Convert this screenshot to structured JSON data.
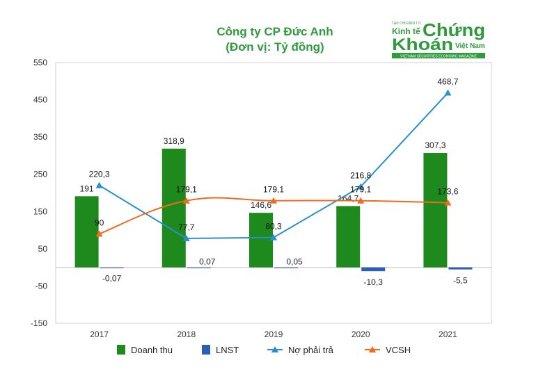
{
  "chart_data": {
    "type": "bar",
    "title": "Công ty CP Đức Anh",
    "subtitle": "(Đơn vị: Tỷ đồng)",
    "categories": [
      "2017",
      "2018",
      "2019",
      "2020",
      "2021"
    ],
    "series": [
      {
        "name": "Doanh thu",
        "type": "bar",
        "color": "#1e8a1e",
        "values": [
          191,
          318.9,
          146.6,
          164.7,
          307.3
        ],
        "labels": [
          "191",
          "318,9",
          "146,6",
          "164,7",
          "307,3"
        ]
      },
      {
        "name": "LNST",
        "type": "bar",
        "color": "#2a5fb3",
        "values": [
          -0.07,
          0.07,
          0.05,
          -10.3,
          -5.5
        ],
        "labels": [
          "-0,07",
          "0,07",
          "0,05",
          "-10,3",
          "-5,5"
        ]
      },
      {
        "name": "Nợ phải trả",
        "type": "line",
        "color": "#2b8fcc",
        "values": [
          220.3,
          77.7,
          80.3,
          216.8,
          468.7
        ],
        "labels": [
          "220,3",
          "77,7",
          "80,3",
          "216,8",
          "468,7"
        ]
      },
      {
        "name": "VCSH",
        "type": "line",
        "smooth": true,
        "color": "#f26a1b",
        "values": [
          90,
          179.1,
          179.1,
          179.1,
          173.6
        ],
        "labels": [
          "90",
          "179,1",
          "179,1",
          "179,1",
          "173,6"
        ]
      }
    ],
    "ylim": [
      -150,
      550
    ],
    "yticks": [
      550,
      450,
      350,
      250,
      150,
      50,
      -50,
      -150
    ],
    "grid": false,
    "legend": "bottom"
  },
  "logo": {
    "top_text": "TẠP CHÍ ĐIỆN TỬ",
    "word_kinh_te": "Kinh tế",
    "word_chung": "Chứng",
    "word_khoan": "Khoán",
    "word_viet_nam": "Việt Nam",
    "tagline": "VIETNAM SECURITIES ECONOMIC MAGAZINE",
    "color": "#2e9b3c"
  }
}
